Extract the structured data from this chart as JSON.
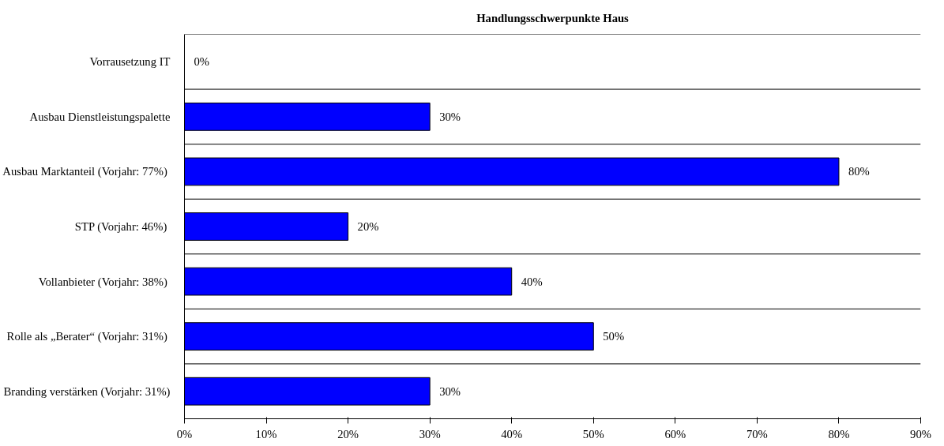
{
  "chart_data": {
    "type": "bar",
    "orientation": "horizontal",
    "title": "Handlungsschwerpunkte Haus",
    "categories": [
      "Vorrausetzung IT",
      "Ausbau Dienstleistungspalette",
      "Ausbau Marktanteil  (Vorjahr: 77%)",
      "STP  (Vorjahr: 46%)",
      "Vollanbieter  (Vorjahr: 38%)",
      "Rolle als „Berater“  (Vorjahr: 31%)",
      "Branding verstärken (Vorjahr: 31%)"
    ],
    "values": [
      0,
      30,
      80,
      20,
      40,
      50,
      30
    ],
    "value_labels": [
      "0%",
      "30%",
      "80%",
      "20%",
      "40%",
      "50%",
      "30%"
    ],
    "color": "#0000ff",
    "xlim": [
      0,
      90
    ],
    "xticks": [
      {
        "value": 0,
        "label": "0%"
      },
      {
        "value": 10,
        "label": "10%"
      },
      {
        "value": 20,
        "label": "20%"
      },
      {
        "value": 30,
        "label": "30%"
      },
      {
        "value": 40,
        "label": "40%"
      },
      {
        "value": 50,
        "label": "50%"
      },
      {
        "value": 60,
        "label": "60%"
      },
      {
        "value": 70,
        "label": "70%"
      },
      {
        "value": 80,
        "label": "80%"
      },
      {
        "value": 90,
        "label": "90%"
      }
    ],
    "grid": "y"
  }
}
